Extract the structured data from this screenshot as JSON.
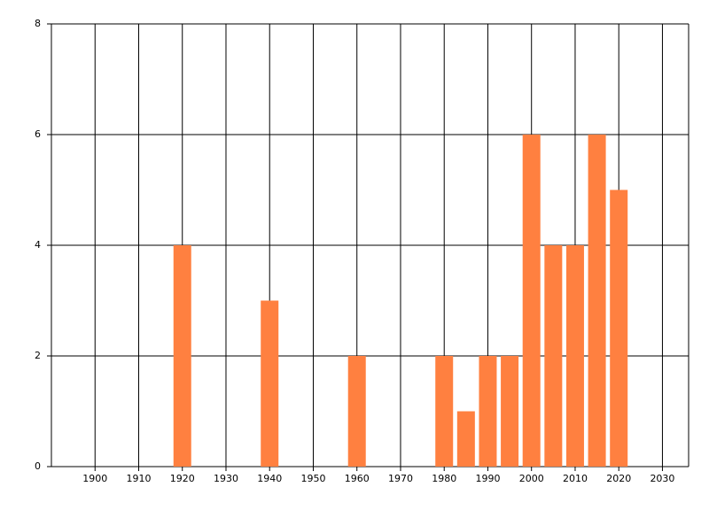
{
  "chart_data": {
    "type": "bar",
    "x": [
      1920,
      1940,
      1960,
      1980,
      1985,
      1990,
      1995,
      2000,
      2005,
      2010,
      2015,
      2020
    ],
    "values": [
      4,
      3,
      2,
      2,
      1,
      2,
      2,
      6,
      4,
      4,
      6,
      5
    ],
    "color": "#ff8040",
    "xlim": [
      1890,
      2036
    ],
    "xticks": [
      1900,
      1910,
      1920,
      1930,
      1940,
      1950,
      1960,
      1970,
      1980,
      1990,
      2000,
      2010,
      2020,
      2030
    ],
    "ylim": [
      0,
      8
    ],
    "yticks": [
      0,
      2,
      4,
      6,
      8
    ],
    "grid": true
  }
}
